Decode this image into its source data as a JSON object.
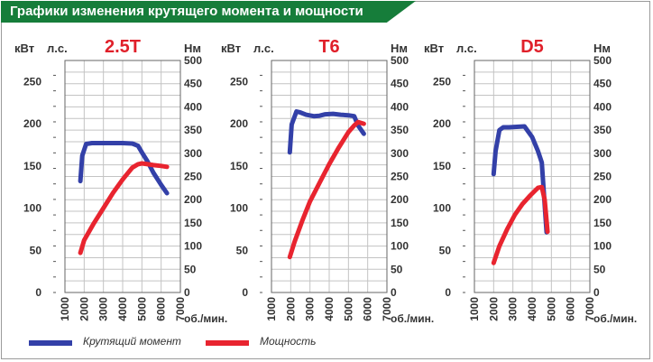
{
  "header": {
    "title": "Графики изменения крутящего момента и мощности"
  },
  "colors": {
    "torque": "#3340a8",
    "power": "#e8242f",
    "grid": "#c3c3c3",
    "title_bg": "#167d3a",
    "chart_title": "#e0202a"
  },
  "legend": {
    "torque_label": "Крутящий момент",
    "power_label": "Мощность"
  },
  "axis_labels": {
    "kw": "кВт",
    "hp": "л.с.",
    "nm": "Нм",
    "rpm": "об./мин."
  },
  "chart_data": [
    {
      "type": "line",
      "title": "2.5T",
      "xlim": [
        1000,
        7000
      ],
      "x_ticks": [
        1000,
        2000,
        3000,
        4000,
        5000,
        6000,
        7000
      ],
      "ylim_kw": [
        0,
        275
      ],
      "ylim_nm": [
        0,
        500
      ],
      "kw_ticks": [
        0,
        50,
        100,
        150,
        200,
        250
      ],
      "nm_ticks": [
        0,
        50,
        100,
        150,
        200,
        250,
        300,
        350,
        400,
        450,
        500
      ],
      "series": [
        {
          "name": "Крутящий момент",
          "unit": "Нм",
          "x": [
            1800,
            1900,
            2100,
            2400,
            3000,
            3500,
            4000,
            4500,
            4800,
            5000,
            5300,
            5600,
            6000,
            6300
          ],
          "y": [
            240,
            295,
            320,
            322,
            322,
            322,
            322,
            321,
            316,
            302,
            282,
            258,
            232,
            214
          ]
        },
        {
          "name": "Мощность",
          "unit": "кВт",
          "x": [
            1800,
            2000,
            2500,
            3000,
            3500,
            4000,
            4500,
            4800,
            5000,
            5300,
            5600,
            6000,
            6300
          ],
          "y": [
            47,
            62,
            82,
            100,
            118,
            134,
            148,
            152,
            153,
            152,
            151,
            150,
            149
          ]
        }
      ]
    },
    {
      "type": "line",
      "title": "T6",
      "xlim": [
        1000,
        7000
      ],
      "x_ticks": [
        1000,
        2000,
        3000,
        4000,
        5000,
        6000,
        7000
      ],
      "ylim_kw": [
        0,
        275
      ],
      "ylim_nm": [
        0,
        500
      ],
      "kw_ticks": [
        0,
        50,
        100,
        150,
        200,
        250
      ],
      "nm_ticks": [
        0,
        50,
        100,
        150,
        200,
        250,
        300,
        350,
        400,
        450,
        500
      ],
      "series": [
        {
          "name": "Крутящий момент",
          "unit": "Нм",
          "x": [
            1950,
            2050,
            2300,
            2500,
            2800,
            3200,
            3500,
            3800,
            4200,
            4600,
            5000,
            5300,
            5500,
            5800
          ],
          "y": [
            302,
            362,
            390,
            388,
            383,
            380,
            381,
            384,
            385,
            383,
            382,
            380,
            360,
            342
          ]
        },
        {
          "name": "Мощность",
          "unit": "кВт",
          "x": [
            1950,
            2200,
            2600,
            3000,
            3500,
            4000,
            4500,
            5000,
            5300,
            5500,
            5800
          ],
          "y": [
            42,
            60,
            85,
            108,
            130,
            152,
            172,
            190,
            198,
            202,
            200
          ]
        }
      ]
    },
    {
      "type": "line",
      "title": "D5",
      "xlim": [
        1000,
        7000
      ],
      "x_ticks": [
        1000,
        2000,
        3000,
        4000,
        5000,
        6000,
        7000
      ],
      "ylim_kw": [
        0,
        275
      ],
      "ylim_nm": [
        0,
        500
      ],
      "kw_ticks": [
        0,
        50,
        100,
        150,
        200,
        250
      ],
      "nm_ticks": [
        0,
        50,
        100,
        150,
        200,
        250,
        300,
        350,
        400,
        450,
        500
      ],
      "series": [
        {
          "name": "Крутящий момент",
          "unit": "Нм",
          "x": [
            2000,
            2100,
            2300,
            2500,
            2800,
            3200,
            3600,
            4000,
            4300,
            4500,
            4600,
            4750
          ],
          "y": [
            255,
            305,
            350,
            356,
            356,
            357,
            358,
            335,
            305,
            280,
            220,
            130
          ]
        },
        {
          "name": "Мощность",
          "unit": "кВт",
          "x": [
            2000,
            2300,
            2700,
            3100,
            3500,
            3900,
            4300,
            4500,
            4650,
            4800
          ],
          "y": [
            35,
            55,
            75,
            92,
            105,
            115,
            124,
            125,
            110,
            72
          ]
        }
      ]
    }
  ]
}
